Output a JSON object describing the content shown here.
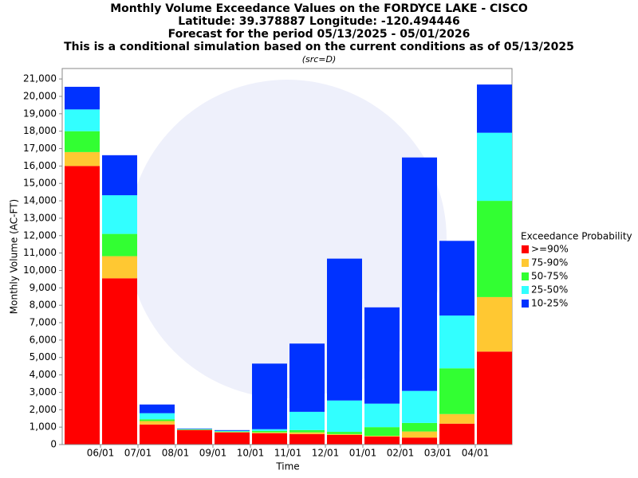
{
  "chart_data": {
    "type": "stacked_bar",
    "title": "Monthly Volume Exceedance Values on the FORDYCE LAKE - CISCO",
    "subtitles": [
      "Latitude: 39.378887 Longitude: -120.494446",
      "Forecast for the period 05/13/2025 - 05/01/2026",
      "This is a conditional simulation based on the current conditions as of 05/13/2025"
    ],
    "source_note": "(src=D)",
    "x_label": "Time",
    "y_label": "Monthly Volume (AC-FT)",
    "legend_title": "Exceedance Probability",
    "legend_position": "right",
    "grid": false,
    "categories": [
      null,
      "06/01",
      "07/01",
      "08/01",
      "09/01",
      "10/01",
      "11/01",
      "12/01",
      "01/01",
      "02/01",
      "03/01",
      "04/01"
    ],
    "series": [
      {
        "name": ">=90%",
        "color": "#ff0000",
        "values": [
          16000,
          9550,
          1150,
          830,
          700,
          650,
          600,
          550,
          460,
          400,
          1200,
          5340
        ]
      },
      {
        "name": "75-90%",
        "color": "#ffc832",
        "values": [
          800,
          1270,
          200,
          20,
          20,
          50,
          100,
          50,
          40,
          350,
          550,
          3130
        ]
      },
      {
        "name": "50-75%",
        "color": "#32ff32",
        "values": [
          1200,
          1280,
          100,
          20,
          30,
          80,
          130,
          130,
          500,
          490,
          2630,
          5530
        ]
      },
      {
        "name": "25-50%",
        "color": "#32ffff",
        "values": [
          1250,
          2220,
          350,
          20,
          40,
          100,
          1050,
          1800,
          1350,
          1840,
          3030,
          3910
        ]
      },
      {
        "name": "10-25%",
        "color": "#0032ff",
        "values": [
          1300,
          2300,
          500,
          30,
          40,
          3770,
          3920,
          8150,
          5530,
          13410,
          4290,
          2770
        ]
      }
    ],
    "ylim": [
      0,
      21600
    ],
    "yticks": [
      0,
      {
        "value": 1000,
        "label": "1,000"
      },
      {
        "value": 2000,
        "label": "2,000"
      },
      {
        "value": 3000,
        "label": "3,000"
      },
      {
        "value": 4000,
        "label": "4,000"
      },
      {
        "value": 5000,
        "label": "5,000"
      },
      {
        "value": 6000,
        "label": "6,000"
      },
      {
        "value": 7000,
        "label": "7,000"
      },
      {
        "value": 8000,
        "label": "8,000"
      },
      {
        "value": 9000,
        "label": "9,000"
      },
      {
        "value": 10000,
        "label": "10,000"
      },
      {
        "value": 11000,
        "label": "11,000"
      },
      {
        "value": 12000,
        "label": "12,000"
      },
      {
        "value": 13000,
        "label": "13,000"
      },
      {
        "value": 14000,
        "label": "14,000"
      },
      {
        "value": 15000,
        "label": "15,000"
      },
      {
        "value": 16000,
        "label": "16,000"
      },
      {
        "value": 17000,
        "label": "17,000"
      },
      {
        "value": 18000,
        "label": "18,000"
      },
      {
        "value": 19000,
        "label": "19,000"
      },
      {
        "value": 20000,
        "label": "20,000"
      },
      {
        "value": 21000,
        "label": "21,000"
      }
    ]
  }
}
